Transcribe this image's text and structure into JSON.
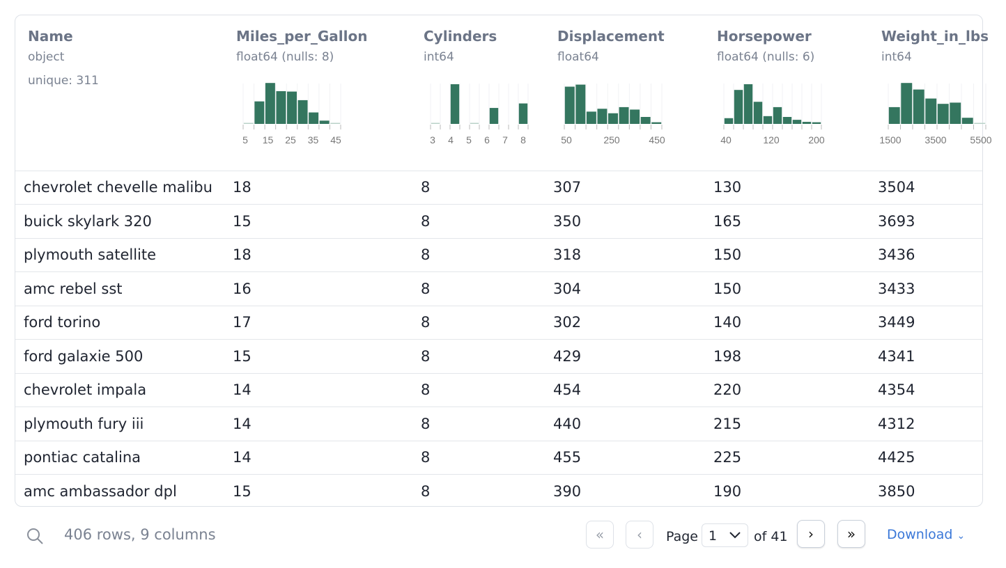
{
  "accent": "#34765f",
  "columns": [
    {
      "name": "Name",
      "type": "object",
      "unique": "unique: 311"
    },
    {
      "name": "Miles_per_Gallon",
      "type": "float64 (nulls: 8)",
      "hist": [
        0.02,
        0.55,
        1.0,
        0.8,
        0.79,
        0.58,
        0.28,
        0.08,
        0.02
      ],
      "ticks": [
        "5",
        "15",
        "25",
        "35",
        "45"
      ]
    },
    {
      "name": "Cylinders",
      "type": "int64",
      "hist": [
        0.02,
        0,
        0.97,
        0,
        0.01,
        0,
        0.39,
        0,
        0,
        0.5
      ],
      "ticks": [
        "3",
        "4",
        "5",
        "6",
        "7",
        "8"
      ]
    },
    {
      "name": "Displacement",
      "type": "float64",
      "hist": [
        0.91,
        0.96,
        0.3,
        0.37,
        0.26,
        0.41,
        0.35,
        0.17,
        0.04
      ],
      "ticks": [
        "50",
        "250",
        "450"
      ]
    },
    {
      "name": "Horsepower",
      "type": "float64 (nulls: 6)",
      "hist": [
        0.14,
        0.83,
        0.97,
        0.54,
        0.19,
        0.41,
        0.17,
        0.1,
        0.05,
        0.04
      ],
      "ticks": [
        "40",
        "120",
        "200"
      ]
    },
    {
      "name": "Weight_in_lbs",
      "type": "int64",
      "hist": [
        0.41,
        1.0,
        0.84,
        0.62,
        0.49,
        0.52,
        0.15,
        0.01
      ],
      "ticks": [
        "1500",
        "3500",
        "5500"
      ]
    }
  ],
  "rows": [
    [
      "chevrolet chevelle malibu",
      "18",
      "8",
      "307",
      "130",
      "3504"
    ],
    [
      "buick skylark 320",
      "15",
      "8",
      "350",
      "165",
      "3693"
    ],
    [
      "plymouth satellite",
      "18",
      "8",
      "318",
      "150",
      "3436"
    ],
    [
      "amc rebel sst",
      "16",
      "8",
      "304",
      "150",
      "3433"
    ],
    [
      "ford torino",
      "17",
      "8",
      "302",
      "140",
      "3449"
    ],
    [
      "ford galaxie 500",
      "15",
      "8",
      "429",
      "198",
      "4341"
    ],
    [
      "chevrolet impala",
      "14",
      "8",
      "454",
      "220",
      "4354"
    ],
    [
      "plymouth fury iii",
      "14",
      "8",
      "440",
      "215",
      "4312"
    ],
    [
      "pontiac catalina",
      "14",
      "8",
      "455",
      "225",
      "4425"
    ],
    [
      "amc ambassador dpl",
      "15",
      "8",
      "390",
      "190",
      "3850"
    ]
  ],
  "footer": {
    "summary": "406 rows, 9 columns",
    "page_label": "Page",
    "page_value": "1",
    "of_label": "of 41",
    "download": "Download"
  }
}
